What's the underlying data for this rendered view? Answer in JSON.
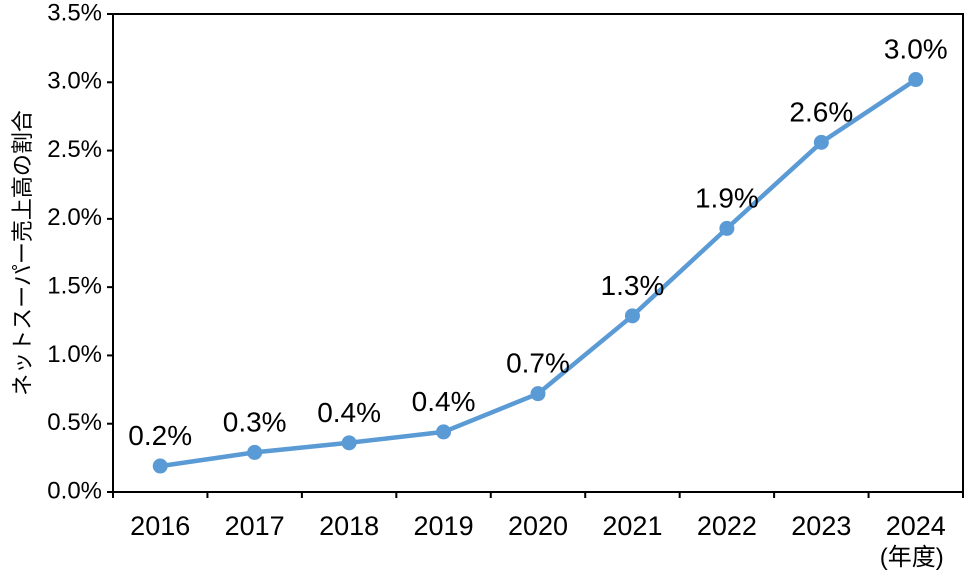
{
  "chart_data": {
    "type": "line",
    "title": "",
    "ylabel": "ネットスーパー売上高の割合",
    "xlabel_unit": "(年度)",
    "categories": [
      "2016",
      "2017",
      "2018",
      "2019",
      "2020",
      "2021",
      "2022",
      "2023",
      "2024"
    ],
    "series": [
      {
        "values": [
          0.2,
          0.3,
          0.4,
          0.4,
          0.7,
          1.3,
          1.9,
          2.6,
          3.0
        ],
        "values_precise": [
          0.19,
          0.29,
          0.36,
          0.44,
          0.72,
          1.29,
          1.93,
          2.56,
          3.02
        ],
        "point_labels": [
          "0.2%",
          "0.3%",
          "0.4%",
          "0.4%",
          "0.7%",
          "1.3%",
          "1.9%",
          "2.6%",
          "3.0%"
        ]
      }
    ],
    "yticks": {
      "values": [
        0.0,
        0.5,
        1.0,
        1.5,
        2.0,
        2.5,
        3.0,
        3.5
      ],
      "labels": [
        "0.0%",
        "0.5%",
        "1.0%",
        "1.5%",
        "2.0%",
        "2.5%",
        "3.0%",
        "3.5%"
      ]
    },
    "ylim": [
      0.0,
      3.5
    ],
    "grid": false,
    "legend": "none",
    "colors": {
      "line": "#5B9BD5",
      "marker": "#5B9BD5",
      "axis": "#000000",
      "text": "#000000",
      "background": "#FFFFFF"
    }
  }
}
